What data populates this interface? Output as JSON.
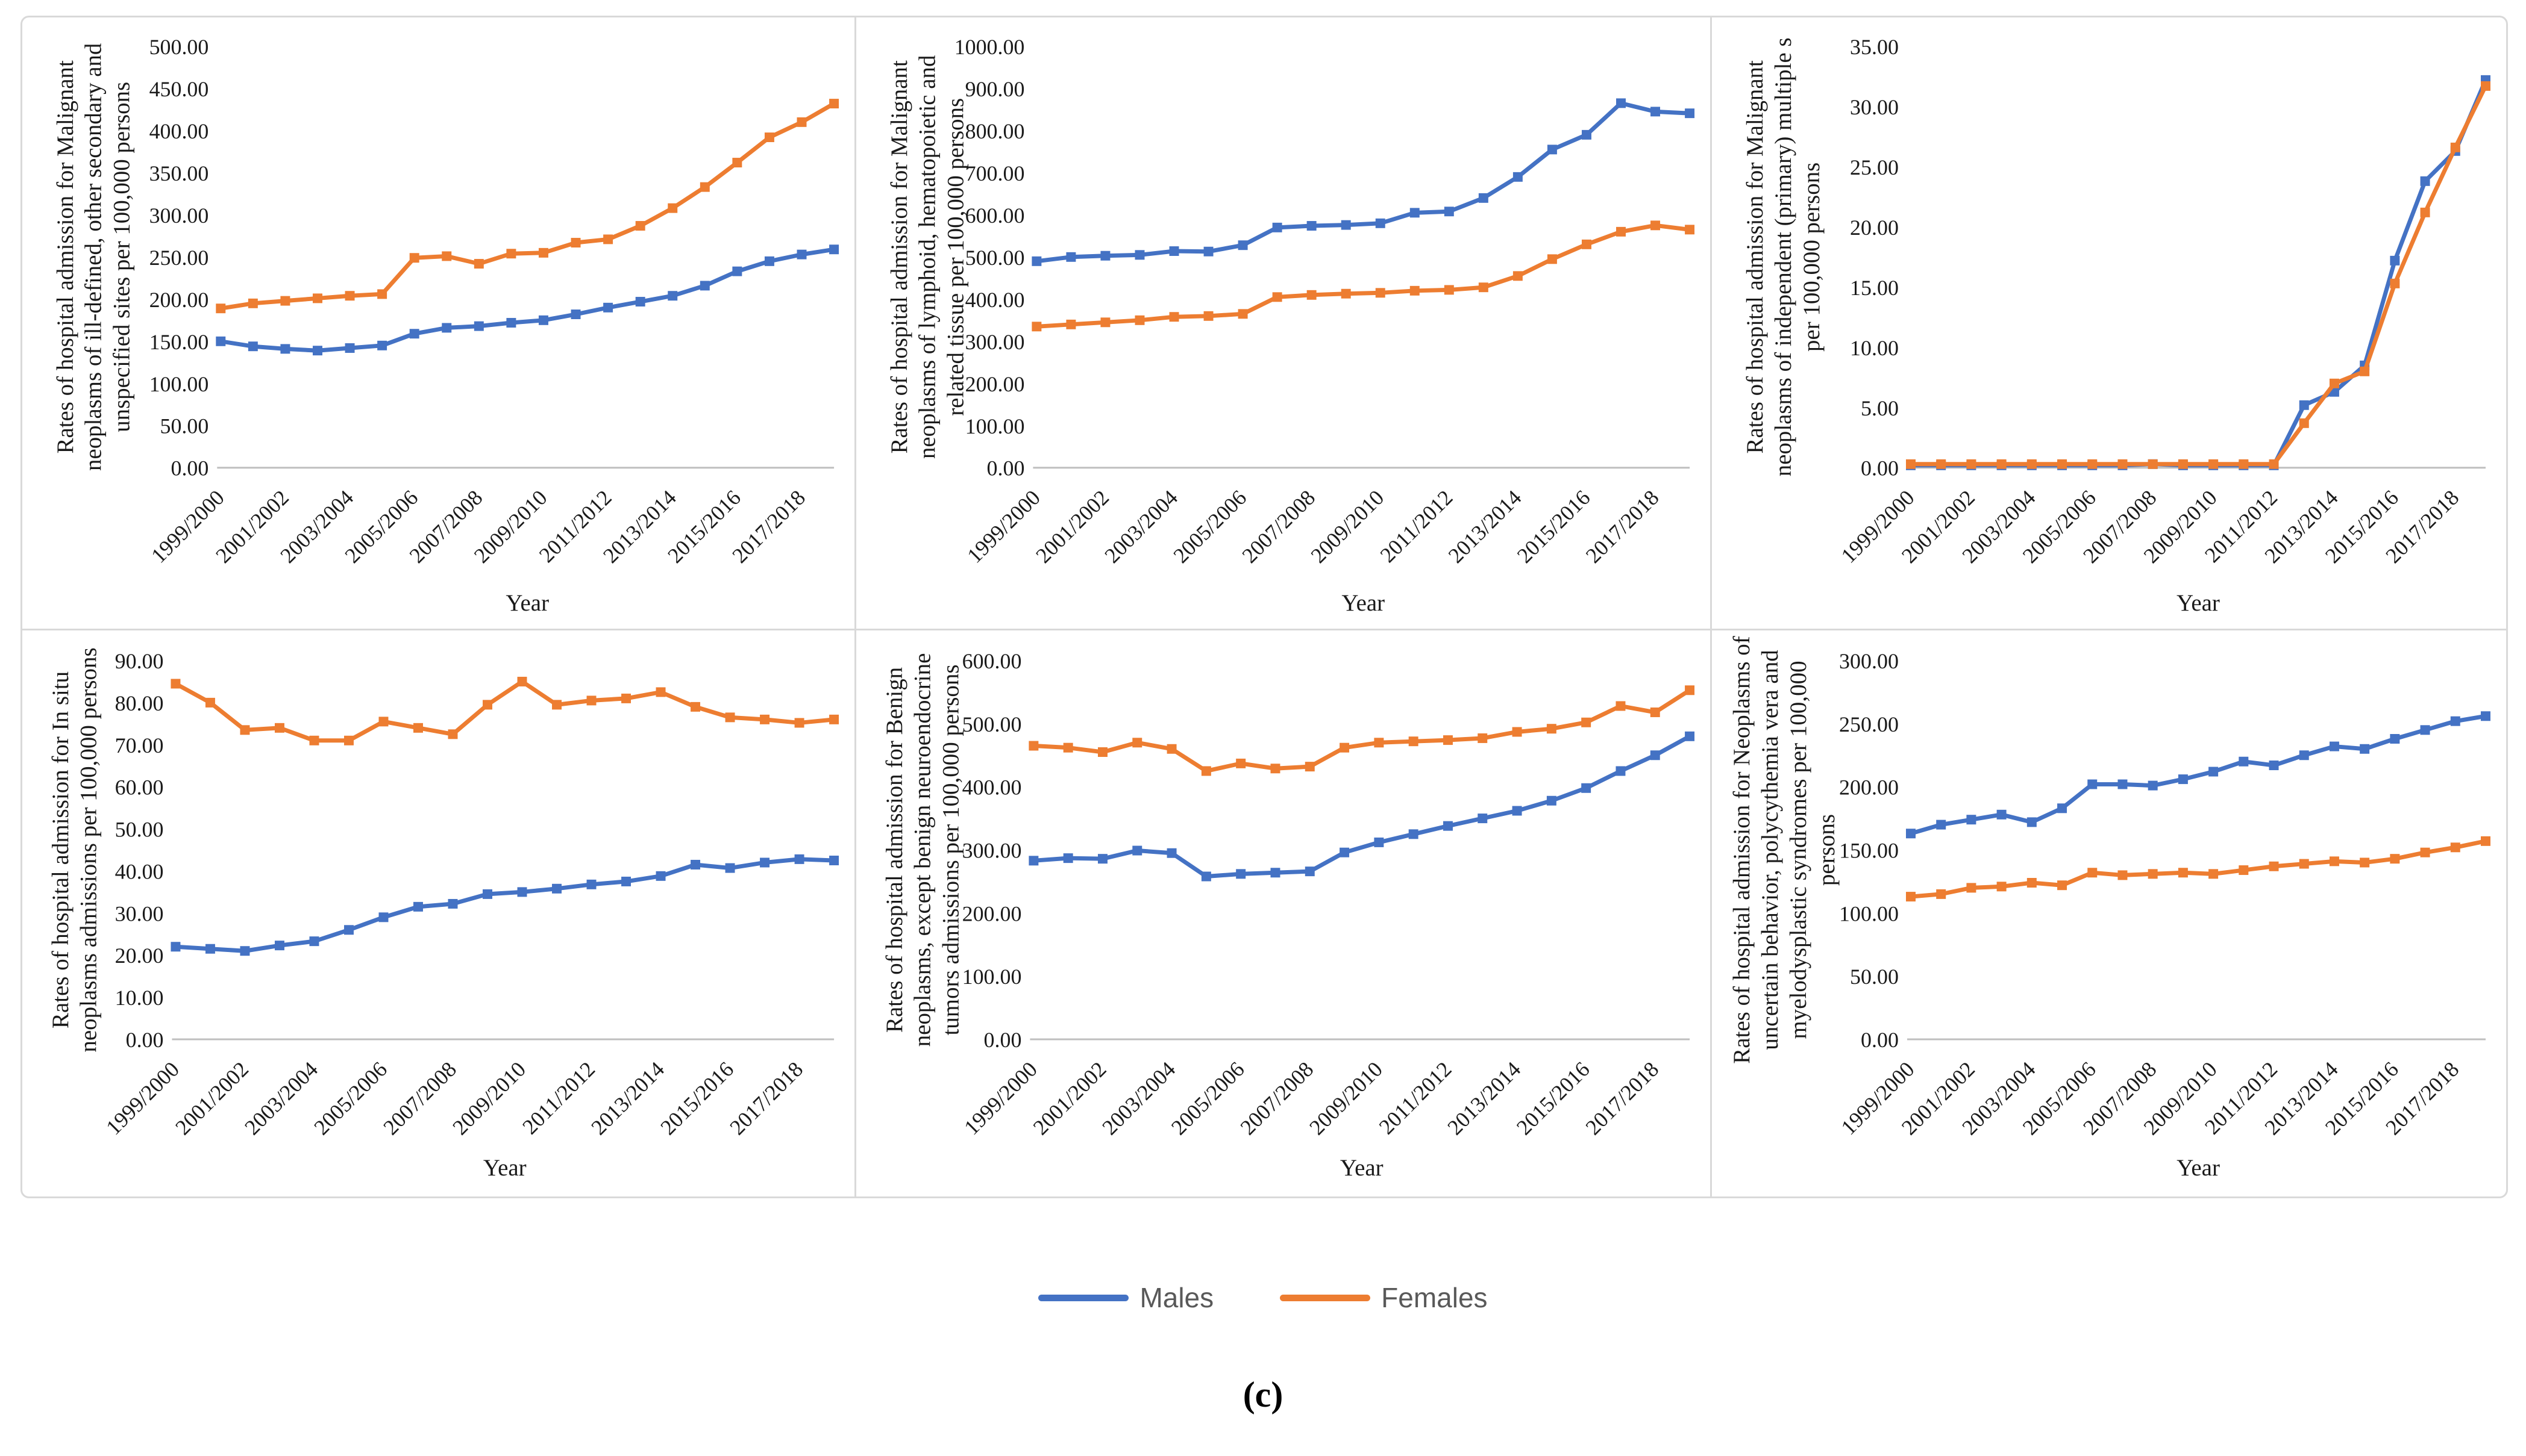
{
  "figure": {
    "caption": "(c)",
    "n_points_per_series": 20,
    "x_axis_note": "data points are yearly; tick labels shown on every second point"
  },
  "colors": {
    "males": "#4472C4",
    "females": "#ED7D31",
    "axis_line": "#bfbfbf",
    "panel_border": "#d9d9d9",
    "legend_text": "#595959"
  },
  "legend": {
    "items": [
      {
        "label": "Males",
        "color": "#4472C4"
      },
      {
        "label": "Females",
        "color": "#ED7D31"
      }
    ]
  },
  "chart_data": [
    {
      "type": "line",
      "panel": "top-left",
      "ylabel_lines": [
        "Rates of hospital admission for Malignant",
        "neoplasms of ill-defined, other secondary and",
        "unspecified sites per 100,000 persons"
      ],
      "xlabel": "Year",
      "ylim": [
        0,
        500
      ],
      "ytick_step": 50,
      "x_tick_labels": [
        "1999/2000",
        "2001/2002",
        "2003/2004",
        "2005/2006",
        "2007/2008",
        "2009/2010",
        "2011/2012",
        "2013/2014",
        "2015/2016",
        "2017/2018"
      ],
      "series": [
        {
          "name": "Males",
          "values": [
            150,
            144,
            141,
            139,
            142,
            145,
            159,
            166,
            168,
            172,
            175,
            182,
            190,
            197,
            204,
            216,
            233,
            245,
            253,
            259
          ]
        },
        {
          "name": "Females",
          "values": [
            189,
            195,
            198,
            201,
            204,
            206,
            249,
            251,
            242,
            254,
            255,
            267,
            271,
            287,
            308,
            333,
            362,
            392,
            410,
            432
          ]
        }
      ]
    },
    {
      "type": "line",
      "panel": "top-middle",
      "ylabel_lines": [
        "Rates of hospital admission for Malignant",
        "neoplasms of lymphoid, hematopoietic and",
        "related tissue per 100,000 persons"
      ],
      "xlabel": "Year",
      "ylim": [
        0,
        1000
      ],
      "ytick_step": 100,
      "x_tick_labels": [
        "1999/2000",
        "2001/2002",
        "2003/2004",
        "2005/2006",
        "2007/2008",
        "2009/2010",
        "2011/2012",
        "2013/2014",
        "2015/2016",
        "2017/2018"
      ],
      "series": [
        {
          "name": "Males",
          "values": [
            490,
            500,
            503,
            505,
            514,
            513,
            528,
            570,
            574,
            576,
            580,
            605,
            608,
            640,
            690,
            755,
            790,
            865,
            845,
            841
          ]
        },
        {
          "name": "Females",
          "values": [
            335,
            340,
            345,
            350,
            358,
            360,
            365,
            405,
            410,
            413,
            415,
            420,
            422,
            428,
            455,
            495,
            530,
            560,
            575,
            565
          ]
        }
      ]
    },
    {
      "type": "line",
      "panel": "top-right",
      "ylabel_lines": [
        "Rates of hospital admission for Malignant",
        "neoplasms of independent (primary) multiple s",
        "per 100,000 persons"
      ],
      "xlabel": "Year",
      "ylim": [
        0,
        35
      ],
      "ytick_step": 5,
      "x_tick_labels": [
        "1999/2000",
        "2001/2002",
        "2003/2004",
        "2005/2006",
        "2007/2008",
        "2009/2010",
        "2011/2012",
        "2013/2014",
        "2015/2016",
        "2017/2018"
      ],
      "series": [
        {
          "name": "Males",
          "values": [
            0.2,
            0.2,
            0.2,
            0.2,
            0.2,
            0.2,
            0.2,
            0.2,
            0.3,
            0.2,
            0.2,
            0.2,
            0.2,
            5.2,
            6.3,
            8.5,
            17.2,
            23.8,
            26.3,
            32.2
          ]
        },
        {
          "name": "Females",
          "values": [
            0.3,
            0.3,
            0.3,
            0.3,
            0.3,
            0.3,
            0.3,
            0.3,
            0.3,
            0.3,
            0.3,
            0.3,
            0.3,
            3.7,
            7.0,
            8.0,
            15.3,
            21.2,
            26.6,
            31.7
          ]
        }
      ]
    },
    {
      "type": "line",
      "panel": "bottom-left",
      "ylabel_lines": [
        "Rates of hospital admission for  In situ",
        "neoplasms admissions per 100,000 persons"
      ],
      "xlabel": "Year",
      "ylim": [
        0,
        90
      ],
      "ytick_step": 10,
      "x_tick_labels": [
        "1999/2000",
        "2001/2002",
        "2003/2004",
        "2005/2006",
        "2007/2008",
        "2009/2010",
        "2011/2012",
        "2013/2014",
        "2015/2016",
        "2017/2018"
      ],
      "series": [
        {
          "name": "Males",
          "values": [
            22,
            21.5,
            21,
            22.3,
            23.3,
            26,
            29,
            31.5,
            32.2,
            34.5,
            35,
            35.8,
            36.8,
            37.5,
            38.8,
            41.5,
            40.7,
            42,
            42.8,
            42.5
          ]
        },
        {
          "name": "Females",
          "values": [
            84.5,
            80,
            73.5,
            74,
            71,
            71,
            75.5,
            74,
            72.5,
            79.5,
            85,
            79.5,
            80.5,
            81,
            82.5,
            79,
            76.5,
            76,
            75.2,
            76
          ]
        }
      ]
    },
    {
      "type": "line",
      "panel": "bottom-middle",
      "ylabel_lines": [
        "Rates of hospital admission for Benign",
        "neoplasms, except benign neuroendocrine",
        "tumors admissions per 100,000 persons"
      ],
      "xlabel": "Year",
      "ylim": [
        0,
        600
      ],
      "ytick_step": 100,
      "x_tick_labels": [
        "1999/2000",
        "2001/2002",
        "2003/2004",
        "2005/2006",
        "2007/2008",
        "2009/2010",
        "2011/2012",
        "2013/2014",
        "2015/2016",
        "2017/2018"
      ],
      "series": [
        {
          "name": "Males",
          "values": [
            283,
            287,
            286,
            299,
            295,
            258,
            262,
            264,
            266,
            296,
            312,
            325,
            338,
            350,
            362,
            378,
            398,
            425,
            450,
            480
          ]
        },
        {
          "name": "Females",
          "values": [
            465,
            462,
            455,
            470,
            460,
            425,
            437,
            429,
            432,
            462,
            470,
            472,
            474,
            477,
            487,
            492,
            502,
            528,
            518,
            553
          ]
        }
      ]
    },
    {
      "type": "line",
      "panel": "bottom-right",
      "ylabel_lines": [
        "Rates of hospital admission for Neoplasms of",
        "uncertain behavior, polycythemia vera and",
        "myelodysplastic syndromes per 100,000",
        "persons"
      ],
      "xlabel": "Year",
      "ylim": [
        0,
        300
      ],
      "ytick_step": 50,
      "x_tick_labels": [
        "1999/2000",
        "2001/2002",
        "2003/2004",
        "2005/2006",
        "2007/2008",
        "2009/2010",
        "2011/2012",
        "2013/2014",
        "2015/2016",
        "2017/2018"
      ],
      "series": [
        {
          "name": "Males",
          "values": [
            163,
            170,
            174,
            178,
            172,
            183,
            202,
            202,
            201,
            206,
            212,
            220,
            217,
            225,
            232,
            230,
            238,
            245,
            252,
            256
          ]
        },
        {
          "name": "Females",
          "values": [
            113,
            115,
            120,
            121,
            124,
            122,
            132,
            130,
            131,
            132,
            131,
            134,
            137,
            139,
            141,
            140,
            143,
            148,
            152,
            157
          ]
        }
      ]
    }
  ]
}
